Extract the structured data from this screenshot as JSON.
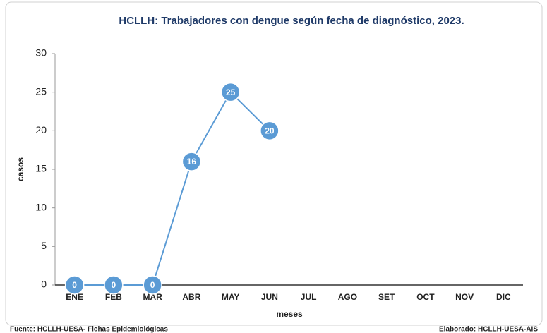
{
  "chart_data": {
    "type": "line",
    "title": "HCLLH: Trabajadores con dengue según fecha de diagnóstico, 2023.",
    "x_label": "meses",
    "y_label": "casos",
    "categories": [
      "ENE",
      "FEB",
      "MAR",
      "ABR",
      "MAY",
      "JUN",
      "JUL",
      "AGO",
      "SET",
      "OCT",
      "NOV",
      "DIC"
    ],
    "series": [
      {
        "name": "casos",
        "color": "#5b9bd5",
        "values": [
          0,
          0,
          0,
          16,
          25,
          20,
          null,
          null,
          null,
          null,
          null,
          null
        ]
      }
    ],
    "ylim": [
      0,
      30
    ],
    "yticks": [
      0,
      5,
      10,
      15,
      20,
      25,
      30
    ],
    "grid": false
  },
  "source": "Fuente: HCLLH-UESA- Fichas Epidemiológicas",
  "credit": "Elaborado: HCLLH-UESA-AIS"
}
